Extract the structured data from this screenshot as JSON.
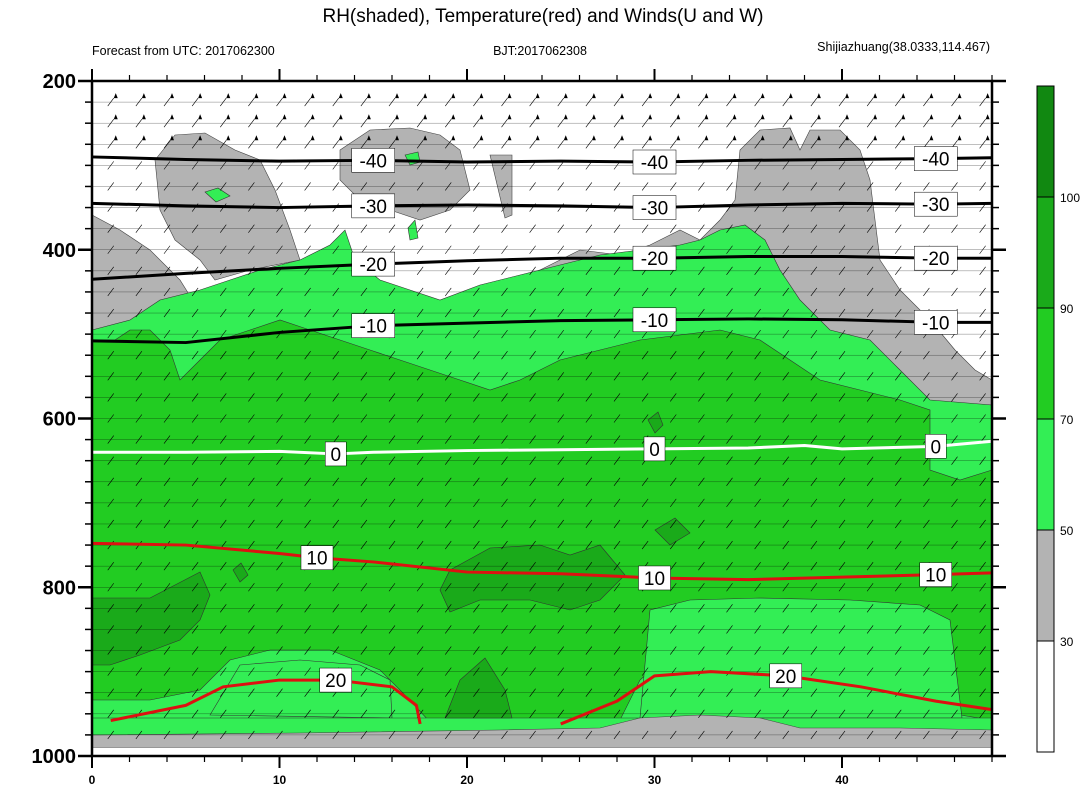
{
  "chart_data": {
    "type": "contour",
    "title": "RH(shaded), Temperature(red) and Winds(U and W)",
    "subtitle_left": "Forecast from UTC: 2017062300",
    "subtitle_center": "BJT:2017062308",
    "subtitle_right": "Shijiazhuang(38.0333,114.467)",
    "xlabel": "",
    "ylabel": "",
    "xlim": [
      0,
      48
    ],
    "ylim": [
      1000,
      200
    ],
    "x_ticks": [
      "0",
      "10",
      "20",
      "30",
      "40"
    ],
    "x_tick_values": [
      0,
      10,
      20,
      30,
      40
    ],
    "y_ticks": [
      "200",
      "400",
      "600",
      "800",
      "1000"
    ],
    "y_tick_values": [
      200,
      400,
      600,
      800,
      1000
    ],
    "colorbar": {
      "levels": [
        "30",
        "50",
        "70",
        "90",
        "100"
      ],
      "bins": [
        {
          "from": 0,
          "to": 30,
          "color": "#ffffff"
        },
        {
          "from": 30,
          "to": 50,
          "color": "#b3b3b3"
        },
        {
          "from": 50,
          "to": 70,
          "color": "#33ee55"
        },
        {
          "from": 70,
          "to": 90,
          "color": "#22cc22"
        },
        {
          "from": 90,
          "to": 100,
          "color": "#1aaa1a"
        },
        {
          "from": 100,
          "to": 110,
          "color": "#118811"
        }
      ]
    },
    "temperature_contours": [
      {
        "value": "-40",
        "color": "#000000",
        "points": [
          [
            0,
            290
          ],
          [
            5,
            293
          ],
          [
            10,
            295
          ],
          [
            15,
            294
          ],
          [
            20,
            296
          ],
          [
            25,
            295
          ],
          [
            30,
            296
          ],
          [
            35,
            294
          ],
          [
            40,
            293
          ],
          [
            45,
            292
          ],
          [
            48,
            291
          ]
        ]
      },
      {
        "value": "-30",
        "color": "#000000",
        "points": [
          [
            0,
            345
          ],
          [
            5,
            348
          ],
          [
            10,
            350
          ],
          [
            15,
            348
          ],
          [
            20,
            347
          ],
          [
            25,
            348
          ],
          [
            30,
            350
          ],
          [
            35,
            347
          ],
          [
            40,
            345
          ],
          [
            45,
            346
          ],
          [
            48,
            345
          ]
        ]
      },
      {
        "value": "-20",
        "color": "#000000",
        "points": [
          [
            0,
            435
          ],
          [
            5,
            428
          ],
          [
            10,
            422
          ],
          [
            15,
            417
          ],
          [
            20,
            413
          ],
          [
            25,
            410
          ],
          [
            30,
            410
          ],
          [
            35,
            408
          ],
          [
            40,
            408
          ],
          [
            45,
            410
          ],
          [
            48,
            410
          ]
        ]
      },
      {
        "value": "-10",
        "color": "#000000",
        "points": [
          [
            0,
            508
          ],
          [
            5,
            510
          ],
          [
            10,
            498
          ],
          [
            15,
            490
          ],
          [
            20,
            487
          ],
          [
            25,
            484
          ],
          [
            30,
            483
          ],
          [
            35,
            482
          ],
          [
            40,
            483
          ],
          [
            45,
            486
          ],
          [
            48,
            486
          ]
        ]
      },
      {
        "value": "0",
        "color": "#ffffff",
        "points": [
          [
            0,
            640
          ],
          [
            5,
            640
          ],
          [
            10,
            639
          ],
          [
            13,
            642
          ],
          [
            15,
            640
          ],
          [
            20,
            638
          ],
          [
            25,
            637
          ],
          [
            30,
            636
          ],
          [
            35,
            635
          ],
          [
            38,
            632
          ],
          [
            40,
            636
          ],
          [
            45,
            633
          ],
          [
            48,
            627
          ]
        ]
      },
      {
        "value": "10",
        "color": "#dd1111",
        "points": [
          [
            0,
            748
          ],
          [
            5,
            750
          ],
          [
            10,
            760
          ],
          [
            12,
            765
          ],
          [
            15,
            770
          ],
          [
            20,
            782
          ],
          [
            25,
            784
          ],
          [
            30,
            789
          ],
          [
            35,
            791
          ],
          [
            40,
            788
          ],
          [
            45,
            785
          ],
          [
            48,
            783
          ]
        ]
      },
      {
        "value": "20",
        "color": "#dd1111",
        "points": [
          [
            1,
            958
          ],
          [
            5,
            940
          ],
          [
            7,
            918
          ],
          [
            10,
            910
          ],
          [
            13,
            910
          ],
          [
            16,
            918
          ],
          [
            17.3,
            940
          ],
          [
            17.5,
            962
          ]
        ]
      },
      {
        "value": "20",
        "color": "#dd1111",
        "points": [
          [
            25,
            962
          ],
          [
            28,
            935
          ],
          [
            30,
            905
          ],
          [
            33,
            900
          ],
          [
            37,
            905
          ],
          [
            41,
            918
          ],
          [
            45,
            935
          ],
          [
            48,
            945
          ]
        ]
      }
    ]
  }
}
